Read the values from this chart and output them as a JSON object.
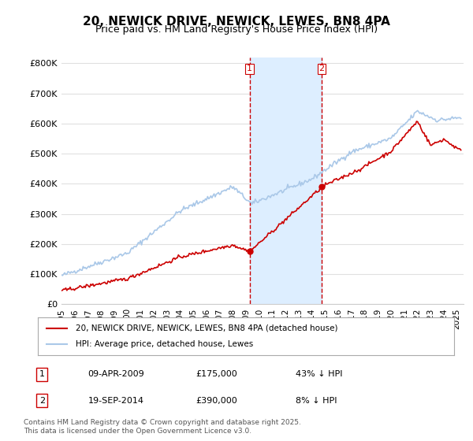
{
  "title": "20, NEWICK DRIVE, NEWICK, LEWES, BN8 4PA",
  "subtitle": "Price paid vs. HM Land Registry's House Price Index (HPI)",
  "title_fontsize": 11,
  "subtitle_fontsize": 9,
  "ylabel_ticks": [
    "£0",
    "£100K",
    "£200K",
    "£300K",
    "£400K",
    "£500K",
    "£600K",
    "£700K",
    "£800K"
  ],
  "ytick_vals": [
    0,
    100000,
    200000,
    300000,
    400000,
    500000,
    600000,
    700000,
    800000
  ],
  "ylim": [
    0,
    820000
  ],
  "xlim_start": 1995.0,
  "xlim_end": 2025.5,
  "background_color": "#ffffff",
  "plot_bg_color": "#ffffff",
  "grid_color": "#e0e0e0",
  "hpi_line_color": "#aac8e8",
  "price_line_color": "#cc0000",
  "purchase1_x": 2009.27,
  "purchase1_y": 175000,
  "purchase2_x": 2014.72,
  "purchase2_y": 390000,
  "shade_start": 2009.27,
  "shade_end": 2014.72,
  "shade_color": "#ddeeff",
  "vline_color": "#cc0000",
  "legend_label1": "20, NEWICK DRIVE, NEWICK, LEWES, BN8 4PA (detached house)",
  "legend_label2": "HPI: Average price, detached house, Lewes",
  "table_entries": [
    {
      "num": "1",
      "date": "09-APR-2009",
      "price": "£175,000",
      "hpi": "43% ↓ HPI"
    },
    {
      "num": "2",
      "date": "19-SEP-2014",
      "price": "£390,000",
      "hpi": "8% ↓ HPI"
    }
  ],
  "footnote": "Contains HM Land Registry data © Crown copyright and database right 2025.\nThis data is licensed under the Open Government Licence v3.0.",
  "xtick_years": [
    1995,
    1996,
    1997,
    1998,
    1999,
    2000,
    2001,
    2002,
    2003,
    2004,
    2005,
    2006,
    2007,
    2008,
    2009,
    2010,
    2011,
    2012,
    2013,
    2014,
    2015,
    2016,
    2017,
    2018,
    2019,
    2020,
    2021,
    2022,
    2023,
    2024,
    2025
  ]
}
